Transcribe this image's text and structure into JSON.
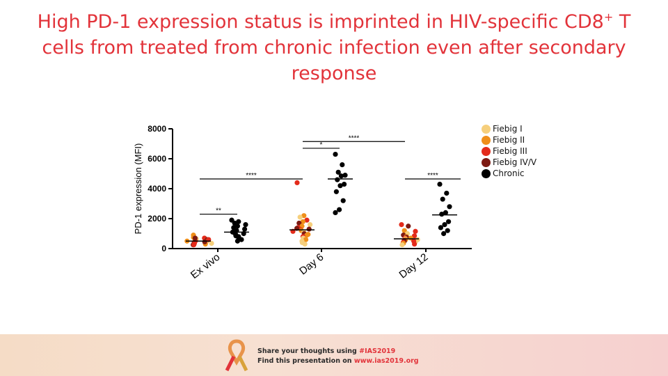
{
  "slide": {
    "title_line1_pre": "High PD-1 expression status is imprinted in HIV-specific CD8",
    "title_line1_sup": "+",
    "title_line1_post": " T",
    "title_line2": "cells from treated from chronic infection even after secondary",
    "title_line3": "response"
  },
  "footer": {
    "share_prefix": "Share your thoughts using ",
    "share_hashtag": "#IAS2019",
    "find_prefix": "Find this presentation on ",
    "find_url": "www.ias2019.org"
  },
  "colors": {
    "title": "#e2333a",
    "fiebig_i": "#f6cf7c",
    "fiebig_ii": "#ef8f1a",
    "fiebig_iii": "#e32b1b",
    "fiebig_iv_v": "#7d1a12",
    "chronic": "#000000"
  },
  "chart_data": {
    "type": "scatter",
    "ylabel": "PD-1 expression (MFI)",
    "ylim": [
      0,
      8000
    ],
    "yticks": [
      "0",
      "2000",
      "4000",
      "6000",
      "8000"
    ],
    "categories": [
      "Ex vivo",
      "Day 6",
      "Day 12"
    ],
    "legend": [
      {
        "name": "Fiebig I",
        "color": "#f6cf7c"
      },
      {
        "name": "Fiebig II",
        "color": "#ef8f1a"
      },
      {
        "name": "Fiebig III",
        "color": "#e32b1b"
      },
      {
        "name": "Fiebig IV/V",
        "color": "#7d1a12"
      },
      {
        "name": "Chronic",
        "color": "#000000"
      }
    ],
    "groups": [
      {
        "category": "Ex vivo",
        "set": "acute",
        "median": 500,
        "points": [
          {
            "y": 750,
            "s": "Fiebig II"
          },
          {
            "y": 700,
            "s": "Fiebig III"
          },
          {
            "y": 650,
            "s": "Fiebig I"
          },
          {
            "y": 600,
            "s": "Fiebig IV/V"
          },
          {
            "y": 550,
            "s": "Fiebig II"
          },
          {
            "y": 500,
            "s": "Fiebig III"
          },
          {
            "y": 450,
            "s": "Fiebig I"
          },
          {
            "y": 400,
            "s": "Fiebig IV/V"
          },
          {
            "y": 350,
            "s": "Fiebig III"
          },
          {
            "y": 300,
            "s": "Fiebig II"
          },
          {
            "y": 250,
            "s": "Fiebig IV/V"
          },
          {
            "y": 900,
            "s": "Fiebig II"
          },
          {
            "y": 600,
            "s": "Fiebig III"
          },
          {
            "y": 450,
            "s": "Fiebig IV/V"
          },
          {
            "y": 350,
            "s": "Fiebig I"
          },
          {
            "y": 700,
            "s": "Fiebig IV/V"
          },
          {
            "y": 500,
            "s": "Fiebig II"
          },
          {
            "y": 250,
            "s": "Fiebig III"
          }
        ]
      },
      {
        "category": "Ex vivo",
        "set": "chronic",
        "median": 1100,
        "points": [
          {
            "y": 1900,
            "s": "Chronic"
          },
          {
            "y": 1800,
            "s": "Chronic"
          },
          {
            "y": 1700,
            "s": "Chronic"
          },
          {
            "y": 1600,
            "s": "Chronic"
          },
          {
            "y": 1500,
            "s": "Chronic"
          },
          {
            "y": 1400,
            "s": "Chronic"
          },
          {
            "y": 1300,
            "s": "Chronic"
          },
          {
            "y": 1200,
            "s": "Chronic"
          },
          {
            "y": 1100,
            "s": "Chronic"
          },
          {
            "y": 1000,
            "s": "Chronic"
          },
          {
            "y": 950,
            "s": "Chronic"
          },
          {
            "y": 850,
            "s": "Chronic"
          },
          {
            "y": 800,
            "s": "Chronic"
          },
          {
            "y": 700,
            "s": "Chronic"
          },
          {
            "y": 600,
            "s": "Chronic"
          },
          {
            "y": 500,
            "s": "Chronic"
          }
        ]
      },
      {
        "category": "Day 6",
        "set": "acute",
        "median": 1250,
        "points": [
          {
            "y": 4400,
            "s": "Fiebig III"
          },
          {
            "y": 2200,
            "s": "Fiebig II"
          },
          {
            "y": 2100,
            "s": "Fiebig I"
          },
          {
            "y": 1900,
            "s": "Fiebig III"
          },
          {
            "y": 1800,
            "s": "Fiebig II"
          },
          {
            "y": 1700,
            "s": "Fiebig IV/V"
          },
          {
            "y": 1600,
            "s": "Fiebig I"
          },
          {
            "y": 1500,
            "s": "Fiebig II"
          },
          {
            "y": 1400,
            "s": "Fiebig III"
          },
          {
            "y": 1300,
            "s": "Fiebig IV/V"
          },
          {
            "y": 1250,
            "s": "Fiebig III"
          },
          {
            "y": 1200,
            "s": "Fiebig II"
          },
          {
            "y": 1100,
            "s": "Fiebig I"
          },
          {
            "y": 1000,
            "s": "Fiebig IV/V"
          },
          {
            "y": 900,
            "s": "Fiebig II"
          },
          {
            "y": 800,
            "s": "Fiebig III"
          },
          {
            "y": 700,
            "s": "Fiebig I"
          },
          {
            "y": 600,
            "s": "Fiebig II"
          },
          {
            "y": 500,
            "s": "Fiebig I"
          },
          {
            "y": 400,
            "s": "Fiebig I"
          },
          {
            "y": 300,
            "s": "Fiebig I"
          },
          {
            "y": 1350,
            "s": "Fiebig IV/V"
          },
          {
            "y": 1150,
            "s": "Fiebig III"
          },
          {
            "y": 950,
            "s": "Fiebig II"
          }
        ]
      },
      {
        "category": "Day 6",
        "set": "chronic",
        "median": 4650,
        "points": [
          {
            "y": 6300,
            "s": "Chronic"
          },
          {
            "y": 5600,
            "s": "Chronic"
          },
          {
            "y": 5100,
            "s": "Chronic"
          },
          {
            "y": 4900,
            "s": "Chronic"
          },
          {
            "y": 4850,
            "s": "Chronic"
          },
          {
            "y": 4600,
            "s": "Chronic"
          },
          {
            "y": 4300,
            "s": "Chronic"
          },
          {
            "y": 4200,
            "s": "Chronic"
          },
          {
            "y": 3800,
            "s": "Chronic"
          },
          {
            "y": 3200,
            "s": "Chronic"
          },
          {
            "y": 2600,
            "s": "Chronic"
          },
          {
            "y": 2400,
            "s": "Chronic"
          }
        ]
      },
      {
        "category": "Day 12",
        "set": "acute",
        "median": 650,
        "points": [
          {
            "y": 1600,
            "s": "Fiebig III"
          },
          {
            "y": 1500,
            "s": "Fiebig IV/V"
          },
          {
            "y": 1200,
            "s": "Fiebig II"
          },
          {
            "y": 1150,
            "s": "Fiebig III"
          },
          {
            "y": 1000,
            "s": "Fiebig I"
          },
          {
            "y": 900,
            "s": "Fiebig IV/V"
          },
          {
            "y": 850,
            "s": "Fiebig III"
          },
          {
            "y": 800,
            "s": "Fiebig II"
          },
          {
            "y": 750,
            "s": "Fiebig IV/V"
          },
          {
            "y": 700,
            "s": "Fiebig III"
          },
          {
            "y": 650,
            "s": "Fiebig I"
          },
          {
            "y": 600,
            "s": "Fiebig II"
          },
          {
            "y": 550,
            "s": "Fiebig III"
          },
          {
            "y": 500,
            "s": "Fiebig IV/V"
          },
          {
            "y": 450,
            "s": "Fiebig I"
          },
          {
            "y": 400,
            "s": "Fiebig III"
          },
          {
            "y": 350,
            "s": "Fiebig II"
          },
          {
            "y": 300,
            "s": "Fiebig III"
          },
          {
            "y": 250,
            "s": "Fiebig I"
          },
          {
            "y": 700,
            "s": "Fiebig II"
          },
          {
            "y": 600,
            "s": "Fiebig I"
          },
          {
            "y": 500,
            "s": "Fiebig III"
          }
        ]
      },
      {
        "category": "Day 12",
        "set": "chronic",
        "median": 2250,
        "points": [
          {
            "y": 4300,
            "s": "Chronic"
          },
          {
            "y": 3700,
            "s": "Chronic"
          },
          {
            "y": 3300,
            "s": "Chronic"
          },
          {
            "y": 2800,
            "s": "Chronic"
          },
          {
            "y": 2400,
            "s": "Chronic"
          },
          {
            "y": 2300,
            "s": "Chronic"
          },
          {
            "y": 1800,
            "s": "Chronic"
          },
          {
            "y": 1600,
            "s": "Chronic"
          },
          {
            "y": 1400,
            "s": "Chronic"
          },
          {
            "y": 1200,
            "s": "Chronic"
          },
          {
            "y": 1000,
            "s": "Chronic"
          }
        ]
      }
    ],
    "significance": [
      {
        "label": "**",
        "from": "Ex vivo acute",
        "to": "Ex vivo chronic",
        "y": 2300
      },
      {
        "label": "****",
        "from": "Ex vivo",
        "to": "Day 6",
        "y": 4650
      },
      {
        "label": "*",
        "from": "Day 6 acute",
        "to": "Day 6 chronic",
        "y": 6700
      },
      {
        "label": "****",
        "from": "Day 6",
        "to": "Day 12",
        "y": 7150
      },
      {
        "label": "****",
        "from": "Day 12 acute",
        "to": "Day 12 chronic",
        "y": 4650
      }
    ]
  }
}
